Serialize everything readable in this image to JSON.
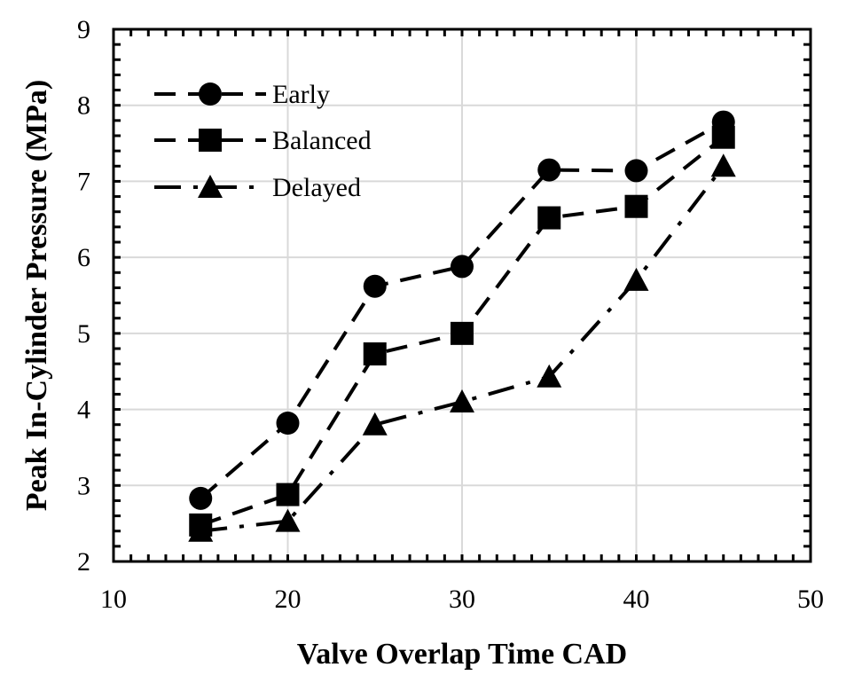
{
  "chart_data": {
    "type": "line",
    "xlabel": "Valve Overlap Time CAD",
    "ylabel": "Peak In-Cylinder Pressure (MPa)",
    "xlim": [
      10,
      50
    ],
    "ylim": [
      2,
      9
    ],
    "x_ticks": [
      10,
      20,
      30,
      40,
      50
    ],
    "y_ticks": [
      2,
      3,
      4,
      5,
      6,
      7,
      8,
      9
    ],
    "grid": true,
    "legend_position": "top-left",
    "x": [
      15,
      20,
      25,
      30,
      35,
      40,
      45
    ],
    "series": [
      {
        "name": "Early",
        "marker": "circle",
        "line_style": "dashed",
        "color": "#000000",
        "values": [
          2.83,
          3.82,
          5.62,
          5.88,
          7.15,
          7.14,
          7.78
        ]
      },
      {
        "name": "Balanced",
        "marker": "square",
        "line_style": "dashed",
        "color": "#000000",
        "values": [
          2.48,
          2.88,
          4.73,
          5.0,
          6.52,
          6.67,
          7.58
        ]
      },
      {
        "name": "Delayed",
        "marker": "triangle",
        "line_style": "dash-dot",
        "color": "#000000",
        "values": [
          2.4,
          2.53,
          3.8,
          4.1,
          4.43,
          5.7,
          7.2
        ]
      }
    ]
  }
}
